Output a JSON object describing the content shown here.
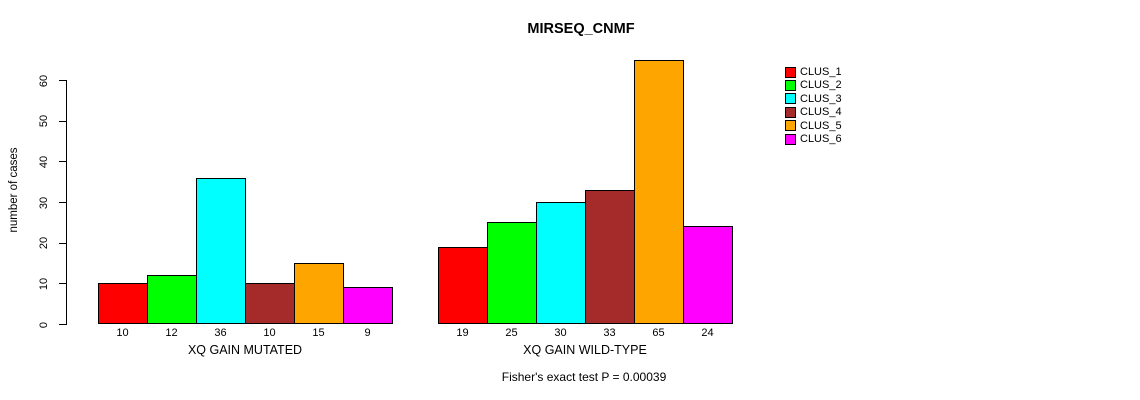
{
  "chart_data": {
    "type": "bar",
    "title": "MIRSEQ_CNMF",
    "ylabel": "number of cases",
    "ylim": [
      0,
      60
    ],
    "yticks": [
      0,
      10,
      20,
      30,
      40,
      50,
      60
    ],
    "grid": false,
    "legend_position": "right",
    "series_labels": [
      "CLUS_1",
      "CLUS_2",
      "CLUS_3",
      "CLUS_4",
      "CLUS_5",
      "CLUS_6"
    ],
    "series_colors": [
      "#FF0000",
      "#00FF00",
      "#00FFFF",
      "#A52A2A",
      "#FFA500",
      "#FF00FF"
    ],
    "groups": [
      {
        "label": "XQ GAIN MUTATED",
        "values": [
          10,
          12,
          36,
          10,
          15,
          9
        ]
      },
      {
        "label": "XQ GAIN WILD-TYPE",
        "values": [
          19,
          25,
          30,
          33,
          65,
          24
        ]
      }
    ],
    "footnote": "Fisher's exact test P = 0.00039"
  }
}
